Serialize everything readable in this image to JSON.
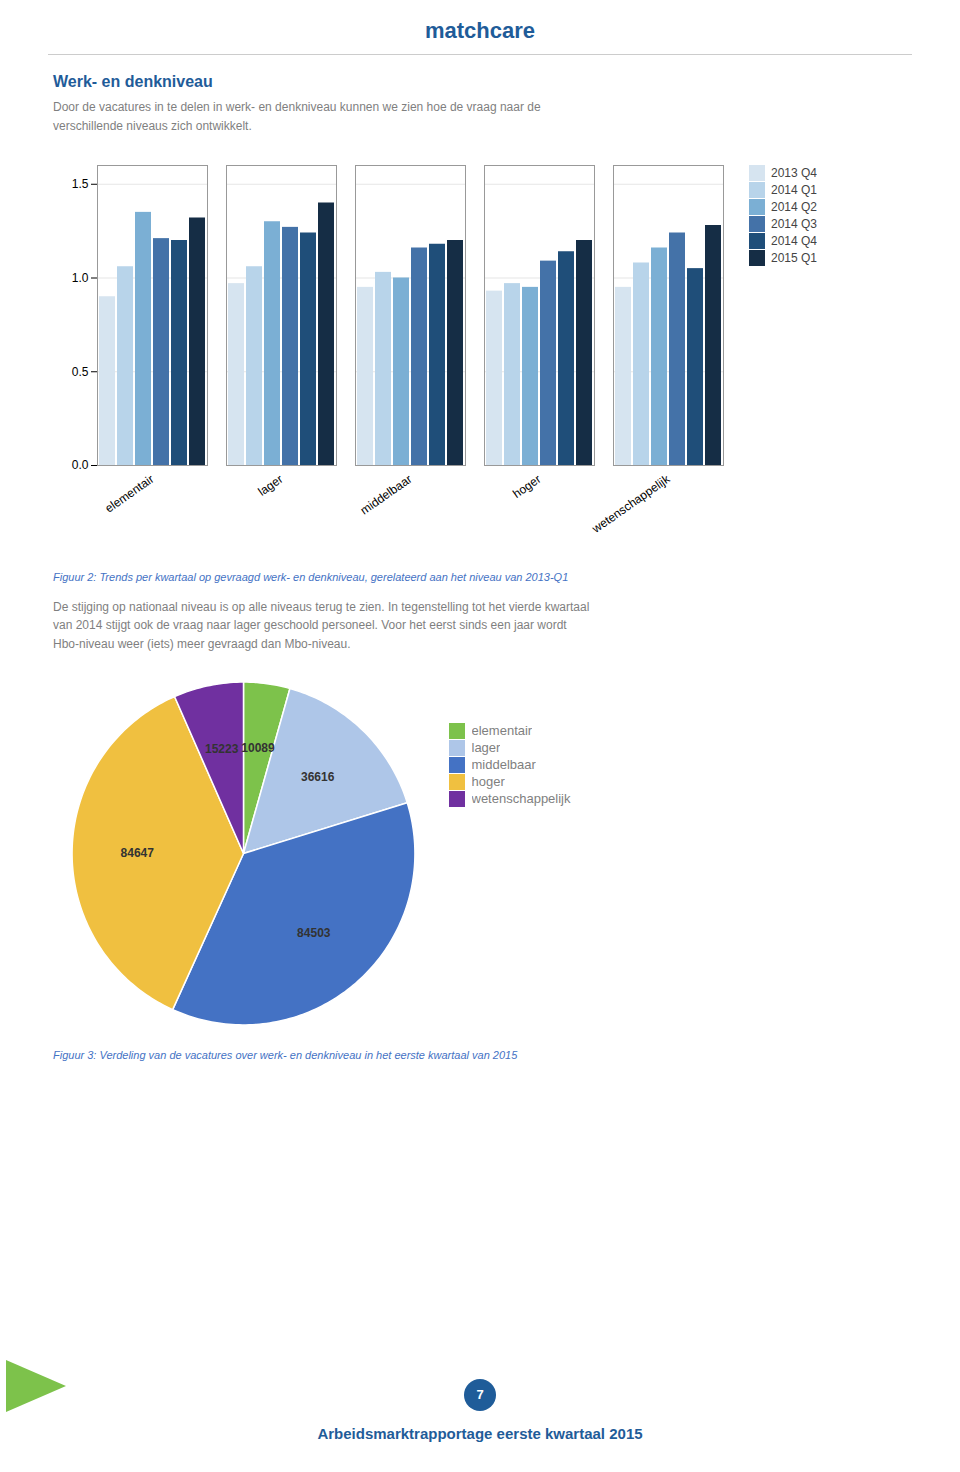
{
  "title": "matchcare",
  "chart_data": [
    {
      "type": "bar",
      "title": "Werk- en denkniveau",
      "subtitle": [
        "Door de vacatures in te delen in werk- en denkniveau kunnen we zien hoe de vraag naar de",
        "verschillende niveaus zich ontwikkelt."
      ],
      "caption": "Figuur 2: Trends per kwartaal op gevraagd werk- en denkniveau, gerelateerd aan het niveau van 2013-Q1",
      "categories": [
        "elementair",
        "lager",
        "middelbaar",
        "hoger",
        "wetenschappelijk"
      ],
      "series": [
        {
          "name": "2013 Q4",
          "color": "#d6e4f0",
          "values": [
            0.9,
            0.97,
            0.95,
            0.93,
            0.95
          ]
        },
        {
          "name": "2014 Q1",
          "color": "#b8d4ea",
          "values": [
            1.06,
            1.06,
            1.03,
            0.97,
            1.08
          ]
        },
        {
          "name": "2014 Q2",
          "color": "#7bafd4",
          "values": [
            1.35,
            1.3,
            1.0,
            0.95,
            1.16
          ]
        },
        {
          "name": "2014 Q3",
          "color": "#4472a8",
          "values": [
            1.21,
            1.27,
            1.16,
            1.09,
            1.24
          ]
        },
        {
          "name": "2014 Q4",
          "color": "#1f4e79",
          "values": [
            1.2,
            1.24,
            1.18,
            1.14,
            1.05
          ]
        },
        {
          "name": "2015 Q1",
          "color": "#152d45",
          "values": [
            1.32,
            1.4,
            1.2,
            1.2,
            1.28
          ]
        }
      ],
      "ylim": [
        0.0,
        1.6
      ],
      "yticks": [
        {
          "value": 0.0,
          "label": "0.0"
        },
        {
          "value": 0.5,
          "label": "0.5"
        },
        {
          "value": 1.0,
          "label": "1.0"
        },
        {
          "value": 1.5,
          "label": "1.5"
        }
      ],
      "grid": true,
      "legend": "right"
    },
    {
      "type": "pie",
      "subtitle": [
        "De stijging op nationaal niveau is op alle niveaus terug te zien. In tegenstelling tot het vierde kwartaal",
        "van 2014 stijgt ook de vraag naar lager geschoold personeel. Voor het eerst sinds een jaar wordt",
        "Hbo-niveau weer (iets) meer gevraagd dan Mbo-niveau."
      ],
      "caption": "Figuur 3: Verdeling van de vacatures over werk- en denkniveau in het eerste kwartaal van 2015",
      "categories": [
        "elementair",
        "lager",
        "middelbaar",
        "hoger",
        "wetenschappelijk"
      ],
      "values": [
        10089,
        36616,
        84503,
        84647,
        15223
      ],
      "colors": [
        "#7dc24b",
        "#aec6e8",
        "#4472c4",
        "#f0c040",
        "#7030a0"
      ],
      "data_labels": true,
      "legend": "right"
    }
  ],
  "annotations": [
    "Arbeidsmarktrapportage eerste kwartaal 2015",
    "7"
  ]
}
